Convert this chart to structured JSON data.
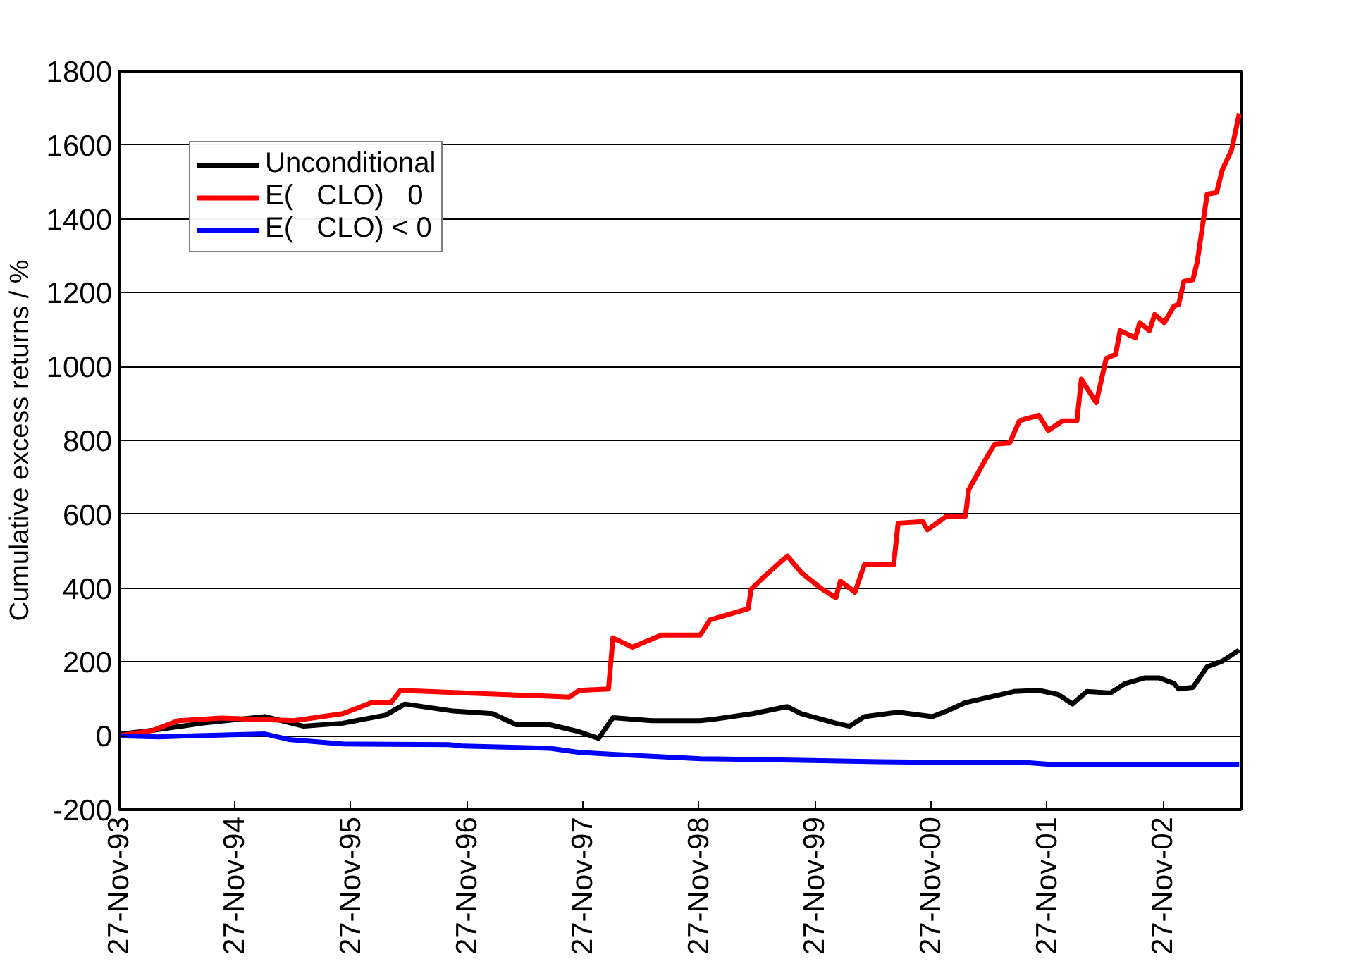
{
  "chart_data": {
    "type": "line",
    "ylabel": "Cumulative excess returns / %",
    "xlim": [
      "1993-11-27",
      "2003-07-31"
    ],
    "ylim": [
      -200,
      1800
    ],
    "xticks": [
      {
        "value": "1993-11-27",
        "label": "27-Nov-93"
      },
      {
        "value": "1994-11-27",
        "label": "27-Nov-94"
      },
      {
        "value": "1995-11-27",
        "label": "27-Nov-95"
      },
      {
        "value": "1996-11-27",
        "label": "27-Nov-96"
      },
      {
        "value": "1997-11-27",
        "label": "27-Nov-97"
      },
      {
        "value": "1998-11-27",
        "label": "27-Nov-98"
      },
      {
        "value": "1999-11-27",
        "label": "27-Nov-99"
      },
      {
        "value": "2000-11-27",
        "label": "27-Nov-00"
      },
      {
        "value": "2001-11-27",
        "label": "27-Nov-01"
      },
      {
        "value": "2002-11-27",
        "label": "27-Nov-02"
      }
    ],
    "yticks": [
      -200,
      0,
      200,
      400,
      600,
      800,
      1000,
      1200,
      1400,
      1600,
      1800
    ],
    "grid": "y",
    "legend": "top left",
    "line_style": "solid",
    "marker": "none",
    "series": [
      {
        "name": "Unconditional",
        "color": "#000000",
        "x": [
          "1993-11-27",
          "1994-03-15",
          "1994-08-15",
          "1995-03-01",
          "1995-07-01",
          "1995-11-01",
          "1996-03-15",
          "1996-05-15",
          "1996-10-15",
          "1997-02-15",
          "1997-05-01",
          "1997-08-15",
          "1997-11-15",
          "1998-01-15",
          "1998-03-01",
          "1998-07-01",
          "1998-12-01",
          "1999-01-15",
          "1999-05-15",
          "1999-09-01",
          "1999-10-15",
          "2000-02-01",
          "2000-03-15",
          "2000-05-01",
          "2000-08-15",
          "2000-12-01",
          "2001-01-15",
          "2001-03-15",
          "2001-06-15",
          "2001-08-15",
          "2001-11-01",
          "2002-01-01",
          "2002-02-15",
          "2002-04-01",
          "2002-06-15",
          "2002-08-01",
          "2002-10-01",
          "2002-11-15",
          "2003-01-01",
          "2003-01-15",
          "2003-03-01",
          "2003-04-15",
          "2003-06-01",
          "2003-07-25"
        ],
        "values": [
          4,
          15,
          34,
          52,
          26,
          34,
          56,
          86,
          67,
          60,
          30,
          30,
          11,
          -7,
          49,
          41,
          41,
          45,
          60,
          79,
          60,
          34,
          26,
          52,
          64,
          52,
          67,
          90,
          108,
          120,
          123,
          112,
          86,
          120,
          116,
          142,
          157,
          157,
          142,
          127,
          131,
          187,
          202,
          232
        ]
      },
      {
        "name": "E(   CLO)   0",
        "color": "#ff0000",
        "x": [
          "1993-11-27",
          "1994-03-15",
          "1994-06-01",
          "1994-10-15",
          "1995-06-01",
          "1995-11-01",
          "1996-02-01",
          "1996-04-01",
          "1996-05-01",
          "1997-10-15",
          "1997-11-15",
          "1998-02-15",
          "1998-03-01",
          "1998-05-01",
          "1998-08-01",
          "1998-12-01",
          "1999-01-01",
          "1999-05-01",
          "1999-05-10",
          "1999-06-15",
          "1999-09-01",
          "1999-10-15",
          "1999-12-15",
          "2000-02-01",
          "2000-02-15",
          "2000-04-01",
          "2000-05-01",
          "2000-08-01",
          "2000-08-15",
          "2000-11-01",
          "2000-11-15",
          "2001-01-15",
          "2001-03-15",
          "2001-03-25",
          "2001-05-15",
          "2001-06-15",
          "2001-08-01",
          "2001-09-01",
          "2001-11-01",
          "2001-12-01",
          "2002-01-15",
          "2002-03-01",
          "2002-03-15",
          "2002-05-01",
          "2002-06-01",
          "2002-07-01",
          "2002-07-15",
          "2002-09-01",
          "2002-09-15",
          "2002-10-15",
          "2002-11-01",
          "2002-12-01",
          "2003-01-01",
          "2003-01-15",
          "2003-02-01",
          "2003-03-01",
          "2003-03-15",
          "2003-04-15",
          "2003-05-15",
          "2003-06-01",
          "2003-07-01",
          "2003-07-25"
        ],
        "values": [
          0,
          15,
          41,
          48,
          41,
          60,
          90,
          90,
          123,
          105,
          123,
          127,
          265,
          240,
          273,
          273,
          314,
          344,
          397,
          427,
          487,
          442,
          400,
          374,
          419,
          389,
          464,
          464,
          576,
          580,
          558,
          595,
          595,
          666,
          745,
          790,
          793,
          853,
          868,
          827,
          853,
          853,
          966,
          902,
          1022,
          1033,
          1097,
          1078,
          1119,
          1097,
          1141,
          1119,
          1164,
          1168,
          1231,
          1235,
          1284,
          1467,
          1471,
          1531,
          1587,
          1684
        ]
      },
      {
        "name": "E(   CLO) < 0",
        "color": "#0000ff",
        "x": [
          "1993-11-27",
          "1994-04-01",
          "1994-07-15",
          "1995-03-01",
          "1995-05-15",
          "1995-11-01",
          "1996-10-01",
          "1996-11-15",
          "1997-08-15",
          "1997-11-15",
          "1998-03-01",
          "1998-12-01",
          "1999-09-15",
          "2000-06-15",
          "2001-01-01",
          "2001-10-01",
          "2001-12-15",
          "2003-07-25"
        ],
        "values": [
          0,
          -3,
          0,
          5,
          -10,
          -22,
          -24,
          -28,
          -34,
          -45,
          -50,
          -62,
          -66,
          -70,
          -72,
          -73,
          -78,
          -78
        ]
      }
    ]
  }
}
